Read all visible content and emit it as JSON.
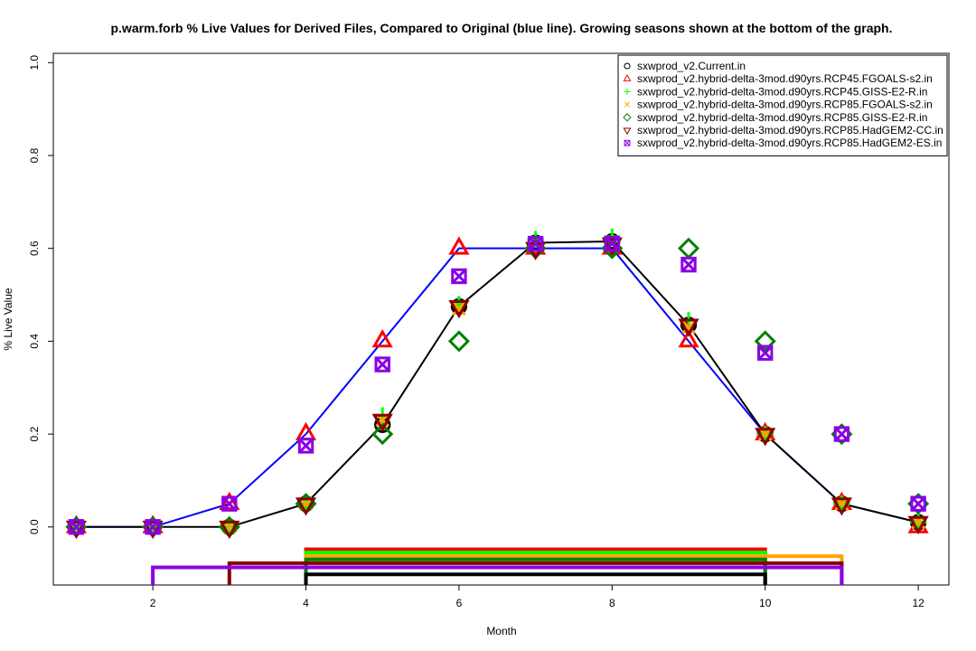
{
  "chart_data": {
    "type": "line",
    "title": "p.warm.forb   % Live Values for Derived Files, Compared to Original (blue line). Growing seasons shown at the bottom of the graph.",
    "xlabel": "Month",
    "ylabel": "% Live Value",
    "xlim": [
      0.7,
      12.4
    ],
    "ylim": [
      -0.125,
      1.02
    ],
    "x_ticks": [
      2,
      4,
      6,
      8,
      10,
      12
    ],
    "y_ticks": [
      0.0,
      0.2,
      0.4,
      0.6,
      0.8,
      1.0
    ],
    "y_tick_labels": [
      "0.0",
      "0.2",
      "0.4",
      "0.6",
      "0.8",
      "1.0"
    ],
    "legend_position": "top-right",
    "original": {
      "color": "#0000ff",
      "x": [
        1,
        2,
        3,
        4,
        5,
        6,
        7,
        8,
        9,
        10,
        11,
        12
      ],
      "values": [
        0,
        0,
        0.05,
        0.2,
        0.4,
        0.6,
        0.6,
        0.6,
        0.4,
        0.2,
        0.05,
        0.01
      ]
    },
    "series": [
      {
        "name": "sxwprod_v2.Current.in",
        "color": "#000000",
        "marker": "circle",
        "line": true,
        "values": [
          0,
          0,
          0,
          0.05,
          0.22,
          0.475,
          0.612,
          0.615,
          0.435,
          0.2,
          0.05,
          0.01
        ]
      },
      {
        "name": "sxwprod_v2.hybrid-delta-3mod.d90yrs.RCP45.FGOALS-s2.in",
        "color": "#ff0000",
        "marker": "triangle",
        "values": [
          0,
          0,
          0.05,
          0.2,
          0.4,
          0.6,
          0.6,
          0.6,
          0.4,
          0.2,
          0.05,
          0
        ]
      },
      {
        "name": "sxwprod_v2.hybrid-delta-3mod.d90yrs.RCP45.GISS-E2-R.in",
        "color": "#00ff00",
        "marker": "plus",
        "values": [
          0,
          0,
          0,
          0.05,
          0.24,
          0.48,
          0.62,
          0.625,
          0.445,
          0.2,
          0.05,
          0.01
        ]
      },
      {
        "name": "sxwprod_v2.hybrid-delta-3mod.d90yrs.RCP85.FGOALS-s2.in",
        "color": "#ffa500",
        "marker": "x",
        "values": [
          0,
          0,
          0,
          0.05,
          0.23,
          0.47,
          0.61,
          0.61,
          0.43,
          0.2,
          0.05,
          0.01
        ]
      },
      {
        "name": "sxwprod_v2.hybrid-delta-3mod.d90yrs.RCP85.GISS-E2-R.in",
        "color": "#008000",
        "marker": "diamond",
        "values": [
          0,
          0,
          0,
          0.05,
          0.2,
          0.4,
          0.6,
          0.6,
          0.6,
          0.4,
          0.2,
          0.05
        ]
      },
      {
        "name": "sxwprod_v2.hybrid-delta-3mod.d90yrs.RCP85.HadGEM2-CC.in",
        "color": "#8b0000",
        "marker": "triangle-down",
        "values": [
          0,
          0,
          0,
          0.05,
          0.23,
          0.475,
          0.6,
          0.61,
          0.435,
          0.2,
          0.05,
          0.01
        ]
      },
      {
        "name": "sxwprod_v2.hybrid-delta-3mod.d90yrs.RCP85.HadGEM2-ES.in",
        "color": "#8a00e6",
        "marker": "box-x",
        "values": [
          0,
          0,
          0.05,
          0.175,
          0.35,
          0.54,
          0.61,
          0.61,
          0.565,
          0.375,
          0.2,
          0.05
        ]
      }
    ],
    "growing_seasons": [
      {
        "series": "sxwprod_v2.hybrid-delta-3mod.d90yrs.RCP45.FGOALS-s2.in",
        "color": "#ff0000",
        "start": 4,
        "end": 10,
        "level": -0.048
      },
      {
        "series": "sxwprod_v2.hybrid-delta-3mod.d90yrs.RCP45.GISS-E2-R.in",
        "color": "#00ff00",
        "start": 4,
        "end": 10,
        "level": -0.055
      },
      {
        "series": "sxwprod_v2.hybrid-delta-3mod.d90yrs.RCP85.FGOALS-s2.in",
        "color": "#ffa500",
        "start": 4,
        "end": 11,
        "level": -0.063
      },
      {
        "series": "sxwprod_v2.hybrid-delta-3mod.d90yrs.RCP85.GISS-E2-R.in",
        "color": "#008000",
        "start": 4,
        "end": 10,
        "level": -0.07
      },
      {
        "series": "sxwprod_v2.hybrid-delta-3mod.d90yrs.RCP85.HadGEM2-CC.in",
        "color": "#8b0000",
        "start": 3,
        "end": 11,
        "level": -0.078
      },
      {
        "series": "sxwprod_v2.hybrid-delta-3mod.d90yrs.RCP85.HadGEM2-ES.in",
        "color": "#8a00e6",
        "start": 2,
        "end": 11,
        "level": -0.087
      },
      {
        "series": "sxwprod_v2.Current.in",
        "color": "#000000",
        "start": 4,
        "end": 10,
        "level": -0.102
      }
    ]
  }
}
